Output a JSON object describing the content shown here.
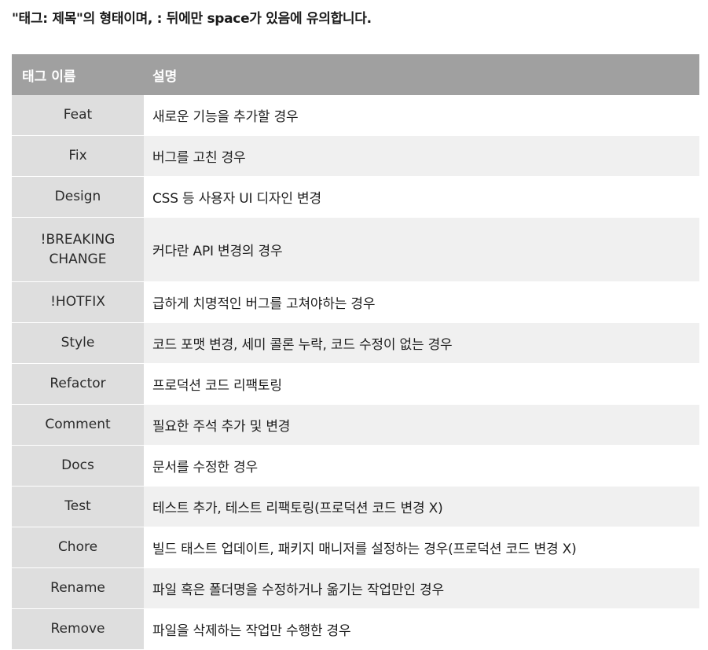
{
  "intro_text": "\"태그: 제목\"의 형태이며, : 뒤에만 space가 있음에 유의합니다.",
  "table": {
    "headers": [
      "태그 이름",
      "설명"
    ],
    "rows": [
      {
        "name": "Feat",
        "desc": "새로운 기능을 추가할 경우"
      },
      {
        "name": "Fix",
        "desc": "버그를 고친 경우"
      },
      {
        "name": "Design",
        "desc": "CSS 등 사용자 UI 디자인 변경"
      },
      {
        "name": "!BREAKING\nCHANGE",
        "desc": "커다란 API 변경의 경우"
      },
      {
        "name": "!HOTFIX",
        "desc": "급하게 치명적인 버그를 고쳐야하는 경우"
      },
      {
        "name": "Style",
        "desc": "코드 포맷 변경, 세미 콜론 누락, 코드 수정이 없는 경우"
      },
      {
        "name": "Refactor",
        "desc": "프로덕션 코드 리팩토링"
      },
      {
        "name": "Comment",
        "desc": "필요한 주석 추가 및 변경"
      },
      {
        "name": "Docs",
        "desc": "문서를 수정한 경우"
      },
      {
        "name": "Test",
        "desc": "테스트 추가, 테스트 리팩토링(프로덕션 코드 변경 X)"
      },
      {
        "name": "Chore",
        "desc": "빌드 태스트 업데이트, 패키지 매니저를 설정하는 경우(프로덕션 코드 변경 X)"
      },
      {
        "name": "Rename",
        "desc": "파일 혹은 폴더명을 수정하거나 옮기는 작업만인 경우"
      },
      {
        "name": "Remove",
        "desc": "파일을 삭제하는 작업만 수행한 경우"
      }
    ]
  },
  "colors": {
    "header_bg": "#a0a0a0",
    "name_col_bg": "#dedede",
    "stripe_bg": "#f0f0f0"
  }
}
